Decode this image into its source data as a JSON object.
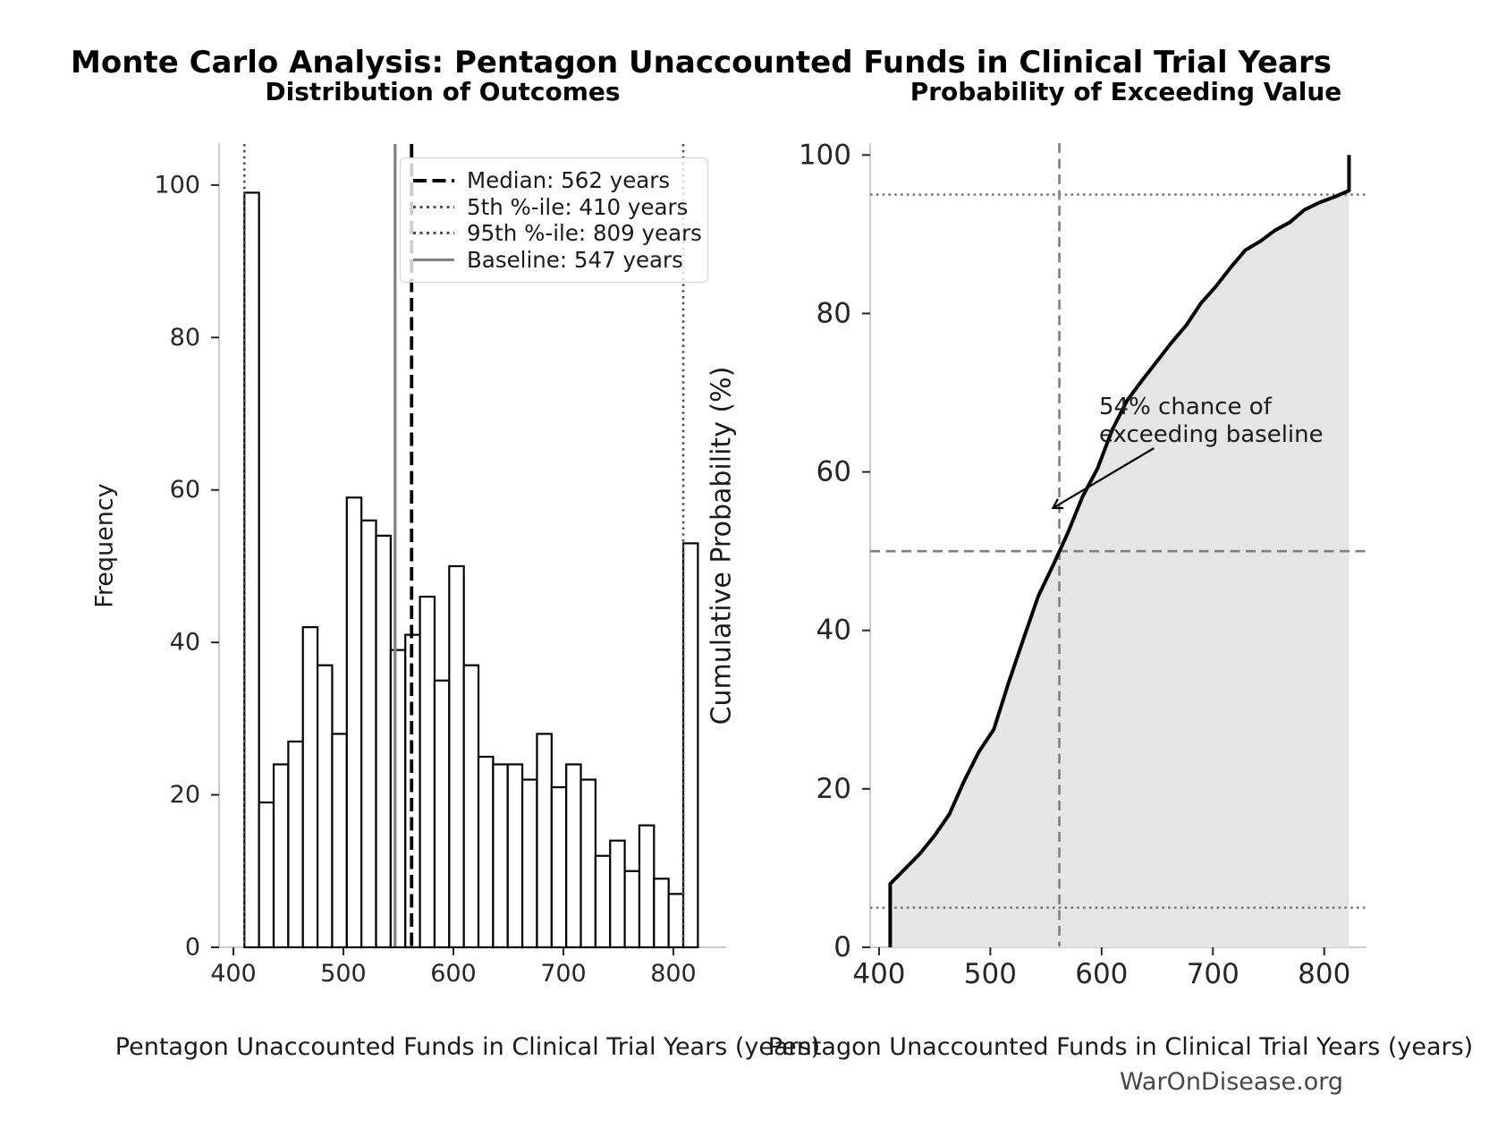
{
  "title": "Monte Carlo Analysis: Pentagon Unaccounted Funds in Clinical Trial Years",
  "watermark": "WarOnDisease.org",
  "chart_data": [
    {
      "type": "bar",
      "title": "Distribution of Outcomes",
      "xlabel": "Pentagon Unaccounted Funds in Clinical Trial Years (years)",
      "ylabel": "Frequency",
      "bin_start": 410,
      "bin_width": 13.3,
      "values": [
        99,
        19,
        24,
        27,
        42,
        37,
        28,
        59,
        56,
        54,
        39,
        41,
        46,
        35,
        50,
        37,
        25,
        24,
        24,
        22,
        28,
        21,
        24,
        22,
        12,
        14,
        10,
        16,
        9,
        7,
        53
      ],
      "xticks": [
        400,
        500,
        600,
        700,
        800
      ],
      "yticks": [
        0,
        20,
        40,
        60,
        80,
        100
      ],
      "xlim": [
        387,
        848
      ],
      "ylim": [
        0,
        105.5
      ],
      "grid": false,
      "legend_position": "upper right",
      "bar_fill": "#ffffff",
      "bar_edge": "#000000",
      "ref_lines": [
        {
          "label": "Median: 562 years",
          "x": 562,
          "style": "dashed-black"
        },
        {
          "label": "5th %-ile: 410 years",
          "x": 410,
          "style": "dotted-gray"
        },
        {
          "label": "95th %-ile: 809 years",
          "x": 809,
          "style": "dotted-gray"
        },
        {
          "label": "Baseline: 547 years",
          "x": 547,
          "style": "solid-gray"
        }
      ]
    },
    {
      "type": "line",
      "title": "Probability of Exceeding Value",
      "xlabel": "Pentagon Unaccounted Funds in Clinical Trial Years (years)",
      "ylabel": "Cumulative Probability (%)",
      "x": [
        410,
        410,
        423.3,
        436.6,
        449.9,
        463.2,
        476.5,
        489.8,
        503.1,
        516.4,
        529.7,
        543,
        556.3,
        569.6,
        582.9,
        596.2,
        609.5,
        622.8,
        636.1,
        649.4,
        662.7,
        676,
        689.3,
        702.6,
        715.9,
        729.2,
        742.5,
        755.8,
        769.1,
        782.4,
        795.7,
        809,
        822.3,
        822.3
      ],
      "y": [
        0,
        8,
        9.9,
        11.8,
        14.1,
        16.8,
        21,
        24.7,
        27.5,
        33.4,
        38.9,
        44.3,
        48.2,
        52.3,
        56.9,
        60.4,
        65.3,
        69,
        71.5,
        73.9,
        76.3,
        78.5,
        81.3,
        83.4,
        85.8,
        88,
        89.1,
        90.5,
        91.5,
        93.1,
        94,
        94.7,
        95.5,
        100
      ],
      "area_fill": true,
      "fill_color": "#e5e5e5",
      "line_color": "#000000",
      "xticks": [
        400,
        500,
        600,
        700,
        800
      ],
      "yticks": [
        0,
        20,
        40,
        60,
        80,
        100
      ],
      "xlim": [
        392,
        838
      ],
      "ylim": [
        0,
        101.5
      ],
      "hlines": [
        {
          "y": 95,
          "style": "dotted"
        },
        {
          "y": 5,
          "style": "dotted"
        },
        {
          "y": 50,
          "style": "dashed"
        }
      ],
      "vlines": [
        {
          "x": 562,
          "style": "dashed"
        }
      ],
      "annotation": {
        "line1": "54% chance of",
        "line2": "exceeding baseline",
        "arrow_from": [
          647,
          63
        ],
        "arrow_to": [
          557,
          55.5
        ]
      }
    }
  ]
}
